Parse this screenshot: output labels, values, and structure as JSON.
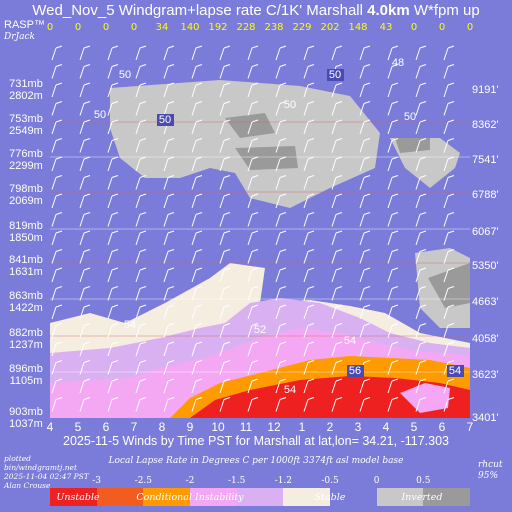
{
  "header": {
    "title_prefix": "Wed_Nov_5 Windgram+lapse rate C/1K'  Marshall ",
    "title_height": "4.0km",
    "title_suffix": "  W*fpm up"
  },
  "branding": {
    "rasp": "RASP™",
    "author": "DrJack"
  },
  "footer": {
    "subtitle": "2025-11-5 Winds by Time PST for Marshall at lat,lon= 34.21, -117.303",
    "legend_title": "Local Lapse Rate  in Degrees C per 1000ft  3374ft asl model base",
    "plotted_lines": [
      "plotted",
      "bin/windgramtj.net",
      "2025-11-04 02:47 PST",
      "Alan Crouse"
    ],
    "rhcut_lines": [
      "rhcut",
      "95%"
    ]
  },
  "chart_data": {
    "type": "heatmap",
    "x_label": "Time PST",
    "x_ticks": [
      "4",
      "5",
      "6",
      "7",
      "8",
      "9",
      "10",
      "11",
      "12",
      "1",
      "2",
      "3",
      "4",
      "5",
      "6",
      "7"
    ],
    "wstar_fpm": [
      0,
      0,
      0,
      0,
      34,
      140,
      192,
      228,
      238,
      229,
      202,
      148,
      43,
      0,
      0,
      0
    ],
    "y_left_labels": [
      [
        "731mb",
        "2802m"
      ],
      [
        "753mb",
        "2549m"
      ],
      [
        "776mb",
        "2299m"
      ],
      [
        "798mb",
        "2069m"
      ],
      [
        "819mb",
        "1850m"
      ],
      [
        "841mb",
        "1631m"
      ],
      [
        "863mb",
        "1422m"
      ],
      [
        "882mb",
        "1237m"
      ],
      [
        "896mb",
        "1105m"
      ],
      [
        "903mb",
        "1037m"
      ]
    ],
    "y_right_labels": [
      "9191'",
      "8362'",
      "7541'",
      "6788'",
      "6067'",
      "5350'",
      "4663'",
      "4058'",
      "3623'",
      "3401'"
    ],
    "colorbar_ticks": [
      "-3",
      "-2.5",
      "-2",
      "-1.5",
      "-1.2",
      "-0.5",
      "0",
      "0.5"
    ],
    "colorbar_categories": [
      "Unstable",
      "Conditional Instability",
      "Stable",
      "Inverted"
    ],
    "colorbar_colors": [
      "#ee2020",
      "#f25c1e",
      "#ff9b00",
      "#f4a8f4",
      "#d9b0f2",
      "#f5ede0",
      "#7b7bd9",
      "#c8c8c8",
      "#9a9a9a"
    ],
    "wind_speed_labels": [
      "50",
      "50",
      "50",
      "50",
      "48",
      "50",
      "50",
      "54",
      "52",
      "54",
      "56",
      "54",
      "54"
    ],
    "bands": {
      "cloud_light": "#c8c8c8",
      "cloud_dark": "#9a9a9a",
      "stable": "#f5ede0",
      "cond_a": "#d9b0f2",
      "cond_b": "#f4a8f4",
      "orange": "#ff9b00",
      "red": "#ee2020",
      "background": "#7b7bd9"
    }
  }
}
